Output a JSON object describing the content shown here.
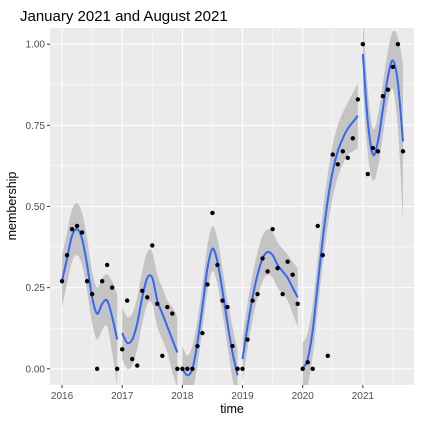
{
  "chart_data": {
    "type": "scatter",
    "title": "January 2021 and August 2021",
    "xlabel": "time",
    "ylabel": "membership",
    "xlim": [
      2015.8,
      2021.85
    ],
    "ylim": [
      -0.05,
      1.05
    ],
    "x_ticks": [
      {
        "value": 2016,
        "label": "2016"
      },
      {
        "value": 2017,
        "label": "2017"
      },
      {
        "value": 2018,
        "label": "2018"
      },
      {
        "value": 2019,
        "label": "2019"
      },
      {
        "value": 2020,
        "label": "2020"
      },
      {
        "value": 2021,
        "label": "2021"
      }
    ],
    "y_ticks": [
      {
        "value": 0.0,
        "label": "0.00"
      },
      {
        "value": 0.25,
        "label": "0.25"
      },
      {
        "value": 0.5,
        "label": "0.50"
      },
      {
        "value": 0.75,
        "label": "0.75"
      },
      {
        "value": 1.0,
        "label": "1.00"
      }
    ],
    "grid": true,
    "colors": {
      "panel": "#ebebeb",
      "grid": "#ffffff",
      "points": "#000000",
      "smooth_line": "#3366ff",
      "ribbon": "#bdbdbd"
    },
    "points": {
      "x": [
        2016.0,
        2016.083,
        2016.167,
        2016.25,
        2016.333,
        2016.417,
        2016.5,
        2016.583,
        2016.667,
        2016.75,
        2016.833,
        2016.917,
        2017.0,
        2017.083,
        2017.167,
        2017.25,
        2017.333,
        2017.417,
        2017.5,
        2017.583,
        2017.667,
        2017.75,
        2017.833,
        2017.917,
        2018.0,
        2018.083,
        2018.167,
        2018.25,
        2018.333,
        2018.417,
        2018.5,
        2018.583,
        2018.667,
        2018.75,
        2018.833,
        2018.917,
        2019.0,
        2019.083,
        2019.167,
        2019.25,
        2019.333,
        2019.417,
        2019.5,
        2019.583,
        2019.667,
        2019.75,
        2019.833,
        2019.917,
        2020.0,
        2020.083,
        2020.167,
        2020.25,
        2020.333,
        2020.417,
        2020.5,
        2020.583,
        2020.667,
        2020.75,
        2020.833,
        2020.917,
        2021.0,
        2021.083,
        2021.167,
        2021.25,
        2021.333,
        2021.417,
        2021.5,
        2021.583,
        2021.667
      ],
      "y": [
        0.27,
        0.35,
        0.43,
        0.44,
        0.42,
        0.27,
        0.23,
        0.0,
        0.27,
        0.32,
        0.25,
        0.0,
        0.06,
        0.21,
        0.03,
        0.01,
        0.24,
        0.22,
        0.38,
        0.2,
        0.04,
        0.19,
        0.17,
        0.0,
        0.0,
        0.0,
        0.0,
        0.07,
        0.11,
        0.26,
        0.48,
        0.32,
        0.21,
        0.19,
        0.07,
        0.0,
        0.0,
        0.09,
        0.21,
        0.23,
        0.34,
        0.3,
        0.43,
        0.31,
        0.23,
        0.33,
        0.29,
        0.2,
        0.0,
        0.02,
        0.0,
        0.44,
        0.35,
        0.04,
        0.66,
        0.63,
        0.67,
        0.65,
        0.71,
        0.83,
        1.0,
        0.6,
        0.68,
        0.67,
        0.84,
        0.86,
        0.93,
        1.0,
        0.67
      ]
    },
    "smooth_segments": [
      {
        "x": [
          2016.0,
          2016.083,
          2016.167,
          2016.25,
          2016.333,
          2016.417,
          2016.5,
          2016.583,
          2016.667,
          2016.75,
          2016.833,
          2016.917
        ],
        "y": [
          0.27,
          0.34,
          0.41,
          0.43,
          0.4,
          0.32,
          0.22,
          0.17,
          0.2,
          0.21,
          0.16,
          0.09
        ],
        "lo": [
          0.19,
          0.26,
          0.33,
          0.35,
          0.32,
          0.24,
          0.14,
          0.09,
          0.12,
          0.13,
          0.05,
          -0.05
        ],
        "hi": [
          0.35,
          0.42,
          0.49,
          0.51,
          0.48,
          0.4,
          0.3,
          0.25,
          0.28,
          0.29,
          0.27,
          0.23
        ]
      },
      {
        "x": [
          2017.0,
          2017.083,
          2017.167,
          2017.25,
          2017.333,
          2017.417,
          2017.5,
          2017.583,
          2017.667,
          2017.75,
          2017.833,
          2017.917
        ],
        "y": [
          0.11,
          0.08,
          0.09,
          0.14,
          0.22,
          0.28,
          0.28,
          0.21,
          0.17,
          0.13,
          0.09,
          0.05
        ],
        "lo": [
          0.03,
          0.0,
          0.01,
          0.06,
          0.14,
          0.2,
          0.2,
          0.13,
          0.09,
          0.05,
          -0.01,
          -0.06
        ],
        "hi": [
          0.19,
          0.16,
          0.17,
          0.22,
          0.3,
          0.36,
          0.36,
          0.29,
          0.25,
          0.21,
          0.19,
          0.16
        ]
      },
      {
        "x": [
          2018.0,
          2018.083,
          2018.167,
          2018.25,
          2018.333,
          2018.417,
          2018.5,
          2018.583,
          2018.667,
          2018.75,
          2018.833,
          2018.917
        ],
        "y": [
          0.0,
          -0.02,
          0.0,
          0.08,
          0.19,
          0.31,
          0.37,
          0.33,
          0.24,
          0.14,
          0.05,
          -0.02
        ],
        "lo": [
          -0.07,
          -0.08,
          -0.07,
          0.01,
          0.12,
          0.24,
          0.3,
          0.26,
          0.17,
          0.07,
          -0.03,
          -0.1
        ],
        "hi": [
          0.07,
          0.04,
          0.07,
          0.15,
          0.26,
          0.38,
          0.44,
          0.4,
          0.31,
          0.21,
          0.13,
          0.06
        ]
      },
      {
        "x": [
          2019.0,
          2019.083,
          2019.167,
          2019.25,
          2019.333,
          2019.417,
          2019.5,
          2019.583,
          2019.667,
          2019.75,
          2019.833,
          2019.917
        ],
        "y": [
          0.03,
          0.13,
          0.22,
          0.29,
          0.34,
          0.36,
          0.35,
          0.32,
          0.3,
          0.28,
          0.25,
          0.22
        ],
        "lo": [
          -0.04,
          0.06,
          0.15,
          0.22,
          0.27,
          0.29,
          0.28,
          0.25,
          0.23,
          0.21,
          0.17,
          0.13
        ],
        "hi": [
          0.1,
          0.2,
          0.29,
          0.36,
          0.41,
          0.43,
          0.42,
          0.39,
          0.37,
          0.35,
          0.33,
          0.31
        ]
      },
      {
        "x": [
          2020.0,
          2020.083,
          2020.167,
          2020.25,
          2020.333,
          2020.417,
          2020.5,
          2020.583,
          2020.667,
          2020.75,
          2020.833,
          2020.917
        ],
        "y": [
          0.0,
          0.03,
          0.12,
          0.26,
          0.4,
          0.52,
          0.61,
          0.67,
          0.71,
          0.74,
          0.76,
          0.78
        ],
        "lo": [
          -0.08,
          -0.05,
          0.04,
          0.18,
          0.32,
          0.44,
          0.53,
          0.59,
          0.63,
          0.66,
          0.67,
          0.68
        ],
        "hi": [
          0.08,
          0.11,
          0.2,
          0.34,
          0.48,
          0.6,
          0.69,
          0.75,
          0.79,
          0.82,
          0.85,
          0.88
        ]
      },
      {
        "x": [
          2021.0,
          2021.083,
          2021.167,
          2021.25,
          2021.333,
          2021.417,
          2021.5,
          2021.583,
          2021.667
        ],
        "y": [
          0.97,
          0.76,
          0.66,
          0.7,
          0.8,
          0.9,
          0.95,
          0.88,
          0.7
        ],
        "lo": [
          0.85,
          0.66,
          0.58,
          0.62,
          0.72,
          0.82,
          0.86,
          0.74,
          0.46
        ],
        "hi": [
          1.09,
          0.86,
          0.74,
          0.78,
          0.88,
          0.98,
          1.04,
          1.02,
          0.94
        ]
      }
    ]
  }
}
